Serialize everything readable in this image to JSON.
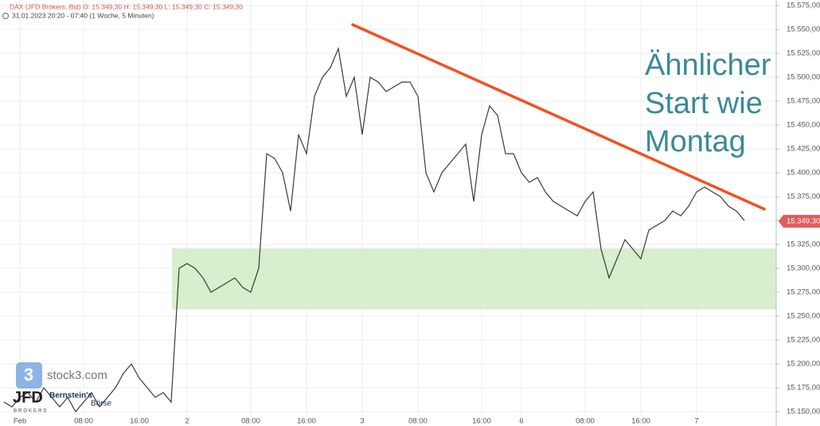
{
  "chart_data": {
    "type": "line",
    "title": "DAX (JFD Brokers, Bid)  O: 15.349,30  H: 15.349,30  L: 15.349,30  C: 15.349,30",
    "subtitle": "31.01.2023 20:20 - 07:40 (1 Woche, 5 Minuten)",
    "categories": [
      null,
      null,
      "Feb",
      null,
      null,
      null,
      null,
      null,
      null,
      null,
      "08:00",
      null,
      null,
      null,
      null,
      null,
      null,
      "16:00",
      null,
      null,
      null,
      null,
      null,
      "2",
      null,
      null,
      null,
      null,
      null,
      null,
      null,
      "08:00",
      null,
      null,
      null,
      null,
      null,
      null,
      "16:00",
      null,
      null,
      null,
      null,
      null,
      null,
      "3",
      null,
      null,
      null,
      null,
      null,
      null,
      "08:00",
      null,
      null,
      null,
      null,
      null,
      null,
      null,
      "16:00",
      null,
      null,
      null,
      null,
      "6",
      null,
      null,
      null,
      null,
      null,
      null,
      null,
      "08:00",
      null,
      null,
      null,
      null,
      null,
      null,
      "16:00",
      null,
      null,
      null,
      null,
      null,
      null,
      "7",
      null,
      null,
      null,
      null,
      null,
      null
    ],
    "series": [
      {
        "name": "DAX",
        "color": "#3a3a3a",
        "values": [
          15160,
          15155,
          15165,
          15170,
          15160,
          15175,
          15165,
          15155,
          15165,
          15150,
          15160,
          15170,
          15155,
          15165,
          15175,
          15190,
          15200,
          15185,
          15175,
          15165,
          15170,
          15160,
          15300,
          15305,
          15300,
          15290,
          15275,
          15280,
          15285,
          15290,
          15280,
          15275,
          15300,
          15420,
          15415,
          15400,
          15360,
          15440,
          15420,
          15480,
          15500,
          15510,
          15530,
          15480,
          15500,
          15440,
          15500,
          15495,
          15485,
          15490,
          15495,
          15495,
          15480,
          15400,
          15380,
          15400,
          15410,
          15420,
          15430,
          15370,
          15440,
          15470,
          15460,
          15420,
          15420,
          15400,
          15390,
          15395,
          15380,
          15370,
          15365,
          15360,
          15355,
          15370,
          15380,
          15320,
          15290,
          15310,
          15330,
          15320,
          15310,
          15340,
          15345,
          15350,
          15360,
          15355,
          15365,
          15380,
          15385,
          15380,
          15375,
          15365,
          15360,
          15350
        ]
      }
    ],
    "ylim": [
      15145,
      15580
    ],
    "yticks": [
      {
        "value": 15150,
        "label": "15.150,00"
      },
      {
        "value": 15175,
        "label": "15.175,00"
      },
      {
        "value": 15200,
        "label": "15.200,00"
      },
      {
        "value": 15225,
        "label": "15.225,00"
      },
      {
        "value": 15250,
        "label": "15.250,00"
      },
      {
        "value": 15275,
        "label": "15.275,00"
      },
      {
        "value": 15300,
        "label": "15.300,00"
      },
      {
        "value": 15325,
        "label": "15.325,00"
      },
      {
        "value": 15350,
        "label": "15.350,00"
      },
      {
        "value": 15375,
        "label": "15.375,00"
      },
      {
        "value": 15400,
        "label": "15.400,00"
      },
      {
        "value": 15425,
        "label": "15.425,00"
      },
      {
        "value": 15450,
        "label": "15.450,00"
      },
      {
        "value": 15475,
        "label": "15.475,00"
      },
      {
        "value": 15500,
        "label": "15.500,00"
      },
      {
        "value": 15525,
        "label": "15.525,00"
      },
      {
        "value": 15550,
        "label": "15.550,00"
      },
      {
        "value": 15575,
        "label": "15.575,00"
      }
    ],
    "grid": true,
    "last_price": {
      "value": 15349.3,
      "label": "15.349,30",
      "color": "#e35a5a"
    },
    "trendline": {
      "x": [
        43.8,
        95.5
      ],
      "y": [
        15555,
        15362
      ],
      "color": "#f4511e"
    },
    "zone": {
      "x_start": 21.1,
      "y": [
        15257,
        15321
      ],
      "color": "#d4ecc8"
    },
    "annotation": [
      "Ähnlicher",
      "Start wie",
      "Montag"
    ],
    "logos": {
      "stock3": "stock3.com",
      "jfd": "JFD",
      "jfd_sub": "BROKERS",
      "bernstein": "Bernstein's",
      "boerse": "Börse"
    }
  }
}
